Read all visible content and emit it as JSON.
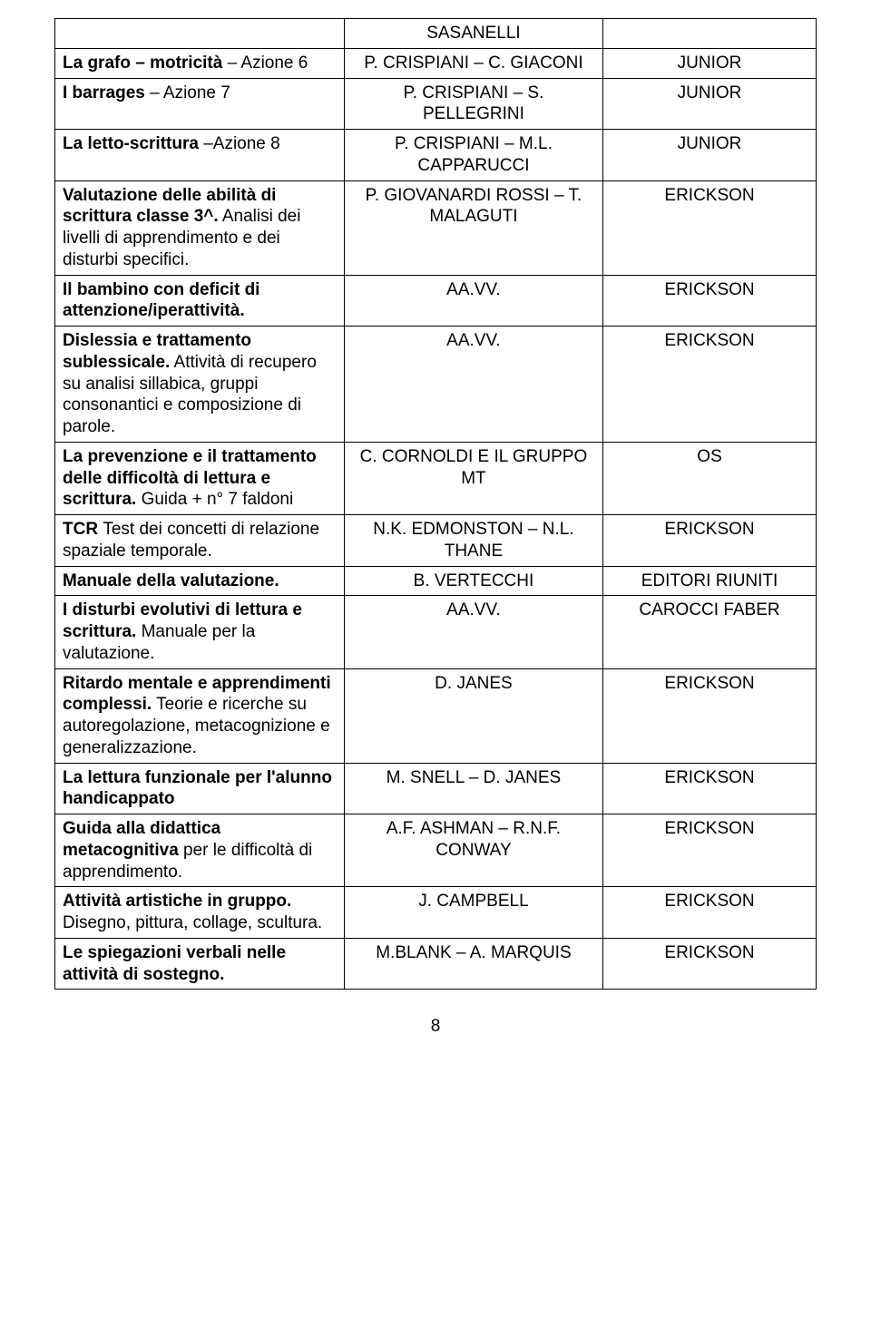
{
  "rows": [
    {
      "c1": [],
      "c2": [
        {
          "text": "SASANELLI",
          "bold": false
        }
      ],
      "c3": []
    },
    {
      "c1": [
        {
          "text": "La grafo – motricità",
          "bold": true
        },
        {
          "text": " – Azione 6",
          "bold": false
        }
      ],
      "c2": [
        {
          "text": "P. CRISPIANI – C. GIACONI",
          "bold": false
        }
      ],
      "c3": [
        {
          "text": "JUNIOR",
          "bold": false
        }
      ]
    },
    {
      "c1": [
        {
          "text": "I barrages",
          "bold": true
        },
        {
          "text": " – Azione 7",
          "bold": false
        }
      ],
      "c2": [
        {
          "text": "P. CRISPIANI – S. PELLEGRINI",
          "bold": false
        }
      ],
      "c3": [
        {
          "text": "JUNIOR",
          "bold": false
        }
      ]
    },
    {
      "c1": [
        {
          "text": "La letto-scrittura",
          "bold": true
        },
        {
          "text": " –Azione 8",
          "bold": false
        }
      ],
      "c2": [
        {
          "text": "P. CRISPIANI – M.L. CAPPARUCCI",
          "bold": false
        }
      ],
      "c3": [
        {
          "text": "JUNIOR",
          "bold": false
        }
      ]
    },
    {
      "c1": [
        {
          "text": "Valutazione delle abilità di scrittura classe 3^.",
          "bold": true
        },
        {
          "text": " Analisi dei livelli di apprendimento e dei disturbi specifici.",
          "bold": false
        }
      ],
      "c2": [
        {
          "text": "P. GIOVANARDI ROSSI – T. MALAGUTI",
          "bold": false
        }
      ],
      "c3": [
        {
          "text": "ERICKSON",
          "bold": false
        }
      ]
    },
    {
      "c1": [
        {
          "text": "Il bambino con deficit di attenzione/iperattività.",
          "bold": true
        }
      ],
      "c2": [
        {
          "text": "AA.VV.",
          "bold": false
        }
      ],
      "c3": [
        {
          "text": "ERICKSON",
          "bold": false
        }
      ]
    },
    {
      "c1": [
        {
          "text": "Dislessia e trattamento sublessicale.",
          "bold": true
        },
        {
          "text": " Attività di recupero su analisi sillabica, gruppi consonantici e composizione di parole.",
          "bold": false
        }
      ],
      "c2": [
        {
          "text": "AA.VV.",
          "bold": false
        }
      ],
      "c3": [
        {
          "text": "ERICKSON",
          "bold": false
        }
      ]
    },
    {
      "c1": [
        {
          "text": "La prevenzione e il trattamento delle difficoltà di lettura e scrittura.",
          "bold": true
        },
        {
          "text": " Guida + n° 7 faldoni",
          "bold": false
        }
      ],
      "c2": [
        {
          "text": "C. CORNOLDI E IL GRUPPO MT",
          "bold": false
        }
      ],
      "c3": [
        {
          "text": "OS",
          "bold": false
        }
      ]
    },
    {
      "c1": [
        {
          "text": "TCR ",
          "bold": true
        },
        {
          "text": "Test dei concetti di relazione spaziale temporale.",
          "bold": false
        }
      ],
      "c2": [
        {
          "text": "N.K. EDMONSTON – N.L. THANE",
          "bold": false
        }
      ],
      "c3": [
        {
          "text": "ERICKSON",
          "bold": false
        }
      ]
    },
    {
      "c1": [
        {
          "text": "Manuale della valutazione.",
          "bold": true
        }
      ],
      "c2": [
        {
          "text": "B. VERTECCHI",
          "bold": false
        }
      ],
      "c3": [
        {
          "text": "EDITORI RIUNITI",
          "bold": false
        }
      ]
    },
    {
      "c1": [
        {
          "text": "I disturbi evolutivi di lettura e scrittura.",
          "bold": true
        },
        {
          "text": " Manuale per la valutazione.",
          "bold": false
        }
      ],
      "c2": [
        {
          "text": "AA.VV.",
          "bold": false
        }
      ],
      "c3": [
        {
          "text": "CAROCCI FABER",
          "bold": false
        }
      ]
    },
    {
      "c1": [
        {
          "text": "Ritardo mentale e apprendimenti complessi.",
          "bold": true
        },
        {
          "text": " Teorie e ricerche su autoregolazione, metacognizione e generalizzazione.",
          "bold": false
        }
      ],
      "c2": [
        {
          "text": "D. JANES",
          "bold": false
        }
      ],
      "c3": [
        {
          "text": "ERICKSON",
          "bold": false
        }
      ]
    },
    {
      "c1": [
        {
          "text": "La lettura funzionale per l'alunno handicappato",
          "bold": true
        }
      ],
      "c2": [
        {
          "text": "M. SNELL – D. JANES",
          "bold": false
        }
      ],
      "c3": [
        {
          "text": "ERICKSON",
          "bold": false
        }
      ]
    },
    {
      "c1": [
        {
          "text": "Guida alla didattica metacognitiva ",
          "bold": true
        },
        {
          "text": "per le difficoltà di apprendimento.",
          "bold": false
        }
      ],
      "c2": [
        {
          "text": "A.F. ASHMAN – R.N.F. CONWAY",
          "bold": false
        }
      ],
      "c3": [
        {
          "text": "ERICKSON",
          "bold": false
        }
      ]
    },
    {
      "c1": [
        {
          "text": "Attività artistiche in gruppo.",
          "bold": true
        },
        {
          "text": " Disegno, pittura, collage, scultura.",
          "bold": false
        }
      ],
      "c2": [
        {
          "text": "J. CAMPBELL",
          "bold": false
        }
      ],
      "c3": [
        {
          "text": "ERICKSON",
          "bold": false
        }
      ]
    },
    {
      "c1": [
        {
          "text": "Le spiegazioni verbali nelle attività di sostegno.",
          "bold": true
        }
      ],
      "c2": [
        {
          "text": "M.BLANK – A. MARQUIS",
          "bold": false
        }
      ],
      "c3": [
        {
          "text": "ERICKSON",
          "bold": false
        }
      ]
    }
  ],
  "pageNumber": "8"
}
